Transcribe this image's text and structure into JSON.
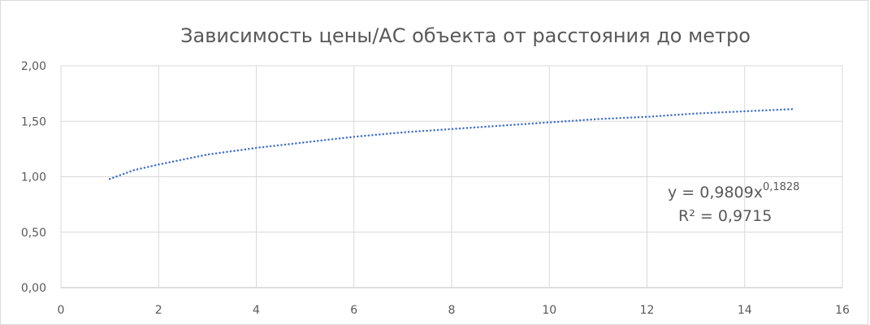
{
  "chart_data": {
    "type": "line",
    "title": "Зависимость цены/АС объекта от расстояния до метро",
    "xlabel": "",
    "ylabel": "",
    "xlim": [
      0,
      16
    ],
    "ylim": [
      0,
      2
    ],
    "x_ticks": [
      "0",
      "2",
      "4",
      "6",
      "8",
      "10",
      "12",
      "14",
      "16"
    ],
    "y_ticks": [
      "0,00",
      "0,50",
      "1,00",
      "1,50",
      "2,00"
    ],
    "grid": true,
    "legend": "none",
    "series": [
      {
        "style": "dotted trendline",
        "color": "#4472c4",
        "x": [
          1,
          1.5,
          2,
          3,
          4,
          5,
          6,
          7,
          8,
          9,
          10,
          11,
          12,
          13,
          14,
          15
        ],
        "values": [
          0.98,
          1.06,
          1.11,
          1.2,
          1.26,
          1.31,
          1.36,
          1.4,
          1.43,
          1.46,
          1.49,
          1.52,
          1.54,
          1.57,
          1.59,
          1.61
        ]
      }
    ],
    "annotations": {
      "equation_prefix": "y = 0,9809x",
      "equation_exponent": "0,1828",
      "r_squared": "R² = 0,9715"
    }
  }
}
